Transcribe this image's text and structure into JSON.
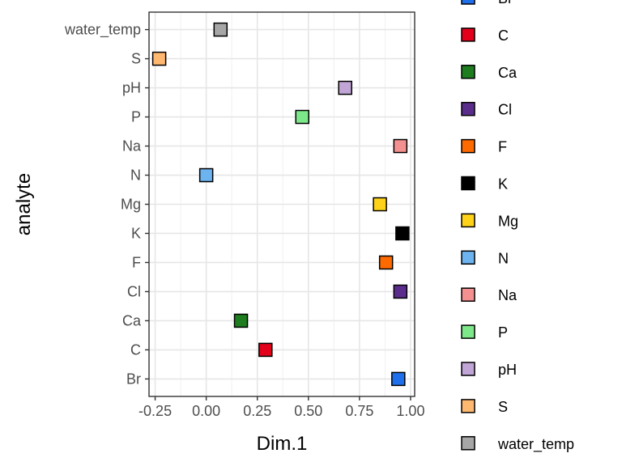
{
  "chart_data": {
    "type": "scatter",
    "xlabel": "Dim.1",
    "ylabel": "analyte",
    "xlim": [
      -0.28,
      1.02
    ],
    "xticks": [
      -0.25,
      0.0,
      0.25,
      0.5,
      0.75,
      1.0
    ],
    "xtick_labels": [
      "-0.25",
      "0.00",
      "0.25",
      "0.50",
      "0.75",
      "1.00"
    ],
    "categories": [
      "Br",
      "C",
      "Ca",
      "Cl",
      "F",
      "K",
      "Mg",
      "N",
      "Na",
      "P",
      "pH",
      "S",
      "water_temp"
    ],
    "points": [
      {
        "analyte": "Br",
        "x": 0.94,
        "color": "#1F6FEB"
      },
      {
        "analyte": "C",
        "x": 0.29,
        "color": "#E3001B"
      },
      {
        "analyte": "Ca",
        "x": 0.17,
        "color": "#1E7D1E"
      },
      {
        "analyte": "Cl",
        "x": 0.95,
        "color": "#5A2D8C"
      },
      {
        "analyte": "F",
        "x": 0.88,
        "color": "#FF6A00"
      },
      {
        "analyte": "K",
        "x": 0.96,
        "color": "#000000"
      },
      {
        "analyte": "Mg",
        "x": 0.85,
        "color": "#FFD21A"
      },
      {
        "analyte": "N",
        "x": 0.0,
        "color": "#6CB3F0"
      },
      {
        "analyte": "Na",
        "x": 0.95,
        "color": "#F59090"
      },
      {
        "analyte": "P",
        "x": 0.47,
        "color": "#7DE889"
      },
      {
        "analyte": "pH",
        "x": 0.68,
        "color": "#C0A5D6"
      },
      {
        "analyte": "S",
        "x": -0.23,
        "color": "#FFB870"
      },
      {
        "analyte": "water_temp",
        "x": 0.07,
        "color": "#A6A6A6"
      }
    ],
    "legend": [
      {
        "label": "Br",
        "color": "#1F6FEB"
      },
      {
        "label": "C",
        "color": "#E3001B"
      },
      {
        "label": "Ca",
        "color": "#1E7D1E"
      },
      {
        "label": "Cl",
        "color": "#5A2D8C"
      },
      {
        "label": "F",
        "color": "#FF6A00"
      },
      {
        "label": "K",
        "color": "#000000"
      },
      {
        "label": "Mg",
        "color": "#FFD21A"
      },
      {
        "label": "N",
        "color": "#6CB3F0"
      },
      {
        "label": "Na",
        "color": "#F59090"
      },
      {
        "label": "P",
        "color": "#7DE889"
      },
      {
        "label": "pH",
        "color": "#C0A5D6"
      },
      {
        "label": "S",
        "color": "#FFB870"
      },
      {
        "label": "water_temp",
        "color": "#A6A6A6"
      }
    ],
    "legend_position": "right",
    "grid": true
  }
}
